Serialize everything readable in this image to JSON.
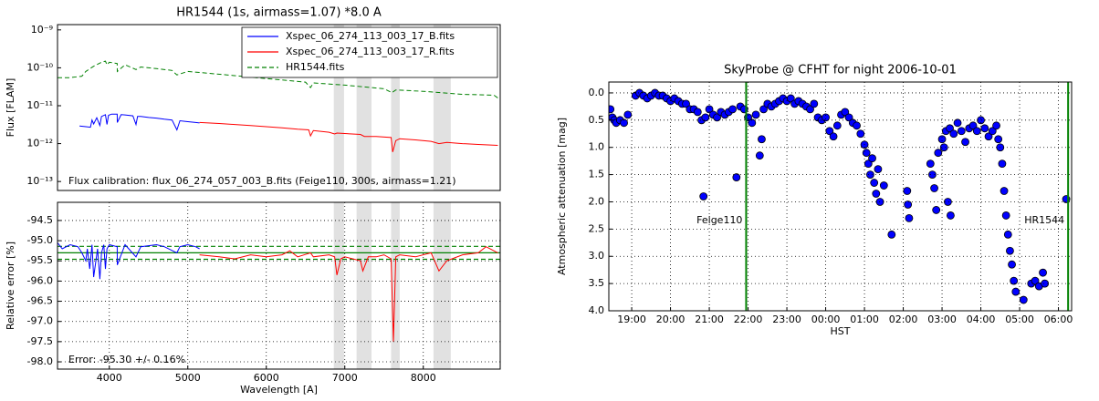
{
  "chart_data": [
    {
      "type": "line",
      "title": "HR1544 (1s, airmass=1.07) *8.0 A",
      "ylabel": "Flux [FLAM]",
      "yscale": "log",
      "xlim": [
        3340,
        8980
      ],
      "ylim": [
        5.8e-14,
        1.38e-09
      ],
      "yticks": [
        {
          "value": 1e-09,
          "label": "10⁻⁹"
        },
        {
          "value": 1e-10,
          "label": "10⁻¹⁰"
        },
        {
          "value": 1e-11,
          "label": "10⁻¹¹"
        },
        {
          "value": 1e-12,
          "label": "10⁻¹²"
        },
        {
          "value": 1e-13,
          "label": "10⁻¹³"
        }
      ],
      "legend": "upper right",
      "bands": [
        [
          6860,
          6990
        ],
        [
          7150,
          7340
        ],
        [
          7590,
          7700
        ],
        [
          8130,
          8350
        ]
      ],
      "annotation": "Flux calibration: flux_06_274_057_003_B.fits (Feige110, 300s, airmass=1.21)",
      "series": [
        {
          "name": "Xspec_06_274_113_003_17_B.fits",
          "color": "#0000ff",
          "linestyle": "solid",
          "x": [
            3620,
            3700,
            3760,
            3780,
            3800,
            3840,
            3880,
            3900,
            3950,
            3970,
            3990,
            4030,
            4100,
            4102,
            4150,
            4200,
            4300,
            4340,
            4360,
            4400,
            4500,
            4600,
            4700,
            4800,
            4861,
            4900,
            5000,
            5100,
            5150
          ],
          "values": [
            2.9e-12,
            2.8e-12,
            2.7e-12,
            4.2e-12,
            3.3e-12,
            4.8e-12,
            3e-12,
            5.2e-12,
            5.8e-12,
            3.2e-12,
            5.6e-12,
            6e-12,
            6e-12,
            3.6e-12,
            5.8e-12,
            5.7e-12,
            5.4e-12,
            3.2e-12,
            5.2e-12,
            5.2e-12,
            4.9e-12,
            4.7e-12,
            4.4e-12,
            4.2e-12,
            2.3e-12,
            4e-12,
            3.8e-12,
            3.6e-12,
            3.5e-12
          ]
        },
        {
          "name": "Xspec_06_274_113_003_17_R.fits",
          "color": "#ff0000",
          "linestyle": "solid",
          "x": [
            5150,
            5400,
            5600,
            5800,
            6000,
            6200,
            6400,
            6540,
            6563,
            6600,
            6800,
            6870,
            6900,
            7000,
            7200,
            7250,
            7400,
            7590,
            7610,
            7650,
            7700,
            7900,
            8100,
            8200,
            8300,
            8500,
            8700,
            8950
          ],
          "values": [
            3.6e-12,
            3.4e-12,
            3.2e-12,
            3e-12,
            2.8e-12,
            2.6e-12,
            2.4e-12,
            2.3e-12,
            1.6e-12,
            2.2e-12,
            2e-12,
            1.8e-12,
            1.9e-12,
            1.85e-12,
            1.75e-12,
            1.55e-12,
            1.55e-12,
            1.45e-12,
            6e-13,
            1.2e-12,
            1.35e-12,
            1.25e-12,
            1.15e-12,
            1e-12,
            1.08e-12,
            1e-12,
            9.5e-13,
            9e-13
          ]
        },
        {
          "name": "HR1544.fits",
          "color": "#008000",
          "linestyle": "dashed",
          "x": [
            3340,
            3500,
            3650,
            3700,
            3800,
            3900,
            3950,
            3970,
            4000,
            4100,
            4102,
            4200,
            4340,
            4400,
            4600,
            4800,
            4861,
            5000,
            5500,
            6000,
            6500,
            6563,
            6600,
            7000,
            7500,
            7600,
            7650,
            8000,
            8500,
            8900,
            8950
          ],
          "values": [
            5.5e-11,
            5.5e-11,
            6e-11,
            8e-11,
            1.1e-10,
            1.4e-10,
            1.5e-10,
            1.2e-10,
            1.4e-10,
            1.3e-10,
            8e-11,
            1.2e-10,
            9e-11,
            1.05e-10,
            9.5e-11,
            8.5e-11,
            6.5e-11,
            8e-11,
            6.5e-11,
            5.2e-11,
            4.2e-11,
            3e-11,
            4e-11,
            3.5e-11,
            2.8e-11,
            2.2e-11,
            2.6e-11,
            2.4e-11,
            2e-11,
            1.9e-11,
            1.6e-11
          ]
        }
      ]
    },
    {
      "type": "line",
      "xlabel": "Wavelength [A]",
      "ylabel": "Relative error [%]",
      "grid": true,
      "xlim": [
        3340,
        8980
      ],
      "ylim": [
        -98.18,
        -94.05
      ],
      "xticks": [
        4000,
        5000,
        6000,
        7000,
        8000
      ],
      "yticks": [
        -94.5,
        {
          "value": -95,
          "label": "-95.0"
        },
        -95.5,
        {
          "value": -96,
          "label": "-96.0"
        },
        -96.5,
        {
          "value": -97,
          "label": "-97.0"
        },
        -97.5,
        {
          "value": -98,
          "label": "-98.0"
        }
      ],
      "bands": [
        [
          6860,
          6990
        ],
        [
          7150,
          7340
        ],
        [
          7590,
          7700
        ],
        [
          8130,
          8350
        ]
      ],
      "annotation": "Error: -95.30 +/- 0.16%",
      "hlines": [
        {
          "value": -95.3,
          "color": "#008000",
          "linestyle": "solid"
        },
        {
          "value": -95.14,
          "color": "#008000",
          "linestyle": "dashed"
        },
        {
          "value": -95.46,
          "color": "#008000",
          "linestyle": "dashed"
        }
      ],
      "series": [
        {
          "color": "#0000ff",
          "linestyle": "solid",
          "x": [
            3340,
            3400,
            3500,
            3600,
            3650,
            3700,
            3720,
            3750,
            3780,
            3800,
            3850,
            3880,
            3900,
            3930,
            3950,
            3970,
            4000,
            4100,
            4102,
            4200,
            4340,
            4400,
            4600,
            4700,
            4861,
            4900,
            5000,
            5100,
            5150
          ],
          "values": [
            -95.05,
            -95.2,
            -95.1,
            -95.15,
            -95.3,
            -95.5,
            -95.2,
            -95.7,
            -95.1,
            -95.9,
            -95.2,
            -95.95,
            -95.3,
            -95.1,
            -95.7,
            -95.2,
            -95.1,
            -95.15,
            -95.6,
            -95.1,
            -95.4,
            -95.15,
            -95.1,
            -95.15,
            -95.3,
            -95.15,
            -95.1,
            -95.15,
            -95.2
          ]
        },
        {
          "color": "#ff0000",
          "linestyle": "solid",
          "x": [
            5150,
            5400,
            5600,
            5800,
            6000,
            6200,
            6300,
            6400,
            6563,
            6600,
            6800,
            6870,
            6900,
            6950,
            7000,
            7200,
            7230,
            7300,
            7400,
            7500,
            7590,
            7620,
            7650,
            7700,
            7900,
            8100,
            8200,
            8300,
            8500,
            8700,
            8800,
            8950
          ],
          "values": [
            -95.35,
            -95.4,
            -95.45,
            -95.35,
            -95.4,
            -95.35,
            -95.25,
            -95.4,
            -95.3,
            -95.4,
            -95.35,
            -95.4,
            -95.85,
            -95.45,
            -95.4,
            -95.5,
            -95.75,
            -95.4,
            -95.4,
            -95.35,
            -95.45,
            -97.5,
            -95.4,
            -95.35,
            -95.4,
            -95.3,
            -95.75,
            -95.5,
            -95.35,
            -95.3,
            -95.15,
            -95.3
          ]
        }
      ]
    },
    {
      "type": "scatter",
      "title": "SkyProbe @ CFHT for night 2006-10-01",
      "xlabel": "HST",
      "ylabel": "Atmospheric attenuation [mag]",
      "grid": true,
      "xlim": [
        18.41,
        30.34
      ],
      "ylim": [
        4.0,
        -0.2
      ],
      "xticks": [
        {
          "value": 19,
          "label": "19:00"
        },
        {
          "value": 20,
          "label": "20:00"
        },
        {
          "value": 21,
          "label": "21:00"
        },
        {
          "value": 22,
          "label": "22:00"
        },
        {
          "value": 23,
          "label": "23:00"
        },
        {
          "value": 24,
          "label": "00:00"
        },
        {
          "value": 25,
          "label": "01:00"
        },
        {
          "value": 26,
          "label": "02:00"
        },
        {
          "value": 27,
          "label": "03:00"
        },
        {
          "value": 28,
          "label": "04:00"
        },
        {
          "value": 29,
          "label": "05:00"
        },
        {
          "value": 30,
          "label": "06:00"
        }
      ],
      "yticks": [
        {
          "value": 0,
          "label": "0.0"
        },
        0.5,
        {
          "value": 1,
          "label": "1.0"
        },
        1.5,
        {
          "value": 2,
          "label": "2.0"
        },
        2.5,
        {
          "value": 3,
          "label": "3.0"
        },
        3.5,
        {
          "value": 4,
          "label": "4.0"
        }
      ],
      "vlines": [
        {
          "x": 21.95,
          "label": "Feige110",
          "color": "#008000"
        },
        {
          "x": 30.25,
          "label": "HR1544",
          "color": "#008000"
        }
      ],
      "color": "#0000ff",
      "x": [
        18.45,
        18.5,
        18.55,
        18.6,
        18.7,
        18.8,
        18.9,
        19.1,
        19.2,
        19.3,
        19.4,
        19.5,
        19.6,
        19.7,
        19.8,
        19.9,
        20.0,
        20.1,
        20.2,
        20.3,
        20.4,
        20.5,
        20.6,
        20.7,
        20.8,
        20.85,
        20.9,
        21.0,
        21.1,
        21.2,
        21.3,
        21.4,
        21.5,
        21.6,
        21.7,
        21.8,
        21.9,
        22.0,
        22.1,
        22.2,
        22.3,
        22.35,
        22.4,
        22.5,
        22.6,
        22.7,
        22.8,
        22.9,
        23.0,
        23.1,
        23.2,
        23.3,
        23.4,
        23.5,
        23.6,
        23.7,
        23.8,
        23.9,
        24.0,
        24.1,
        24.2,
        24.3,
        24.4,
        24.5,
        24.6,
        24.7,
        24.8,
        24.9,
        25.0,
        25.05,
        25.1,
        25.15,
        25.2,
        25.25,
        25.3,
        25.35,
        25.4,
        25.5,
        25.7,
        26.1,
        26.12,
        26.15,
        26.7,
        26.75,
        26.8,
        26.85,
        26.9,
        27.0,
        27.05,
        27.1,
        27.15,
        27.2,
        27.22,
        27.3,
        27.4,
        27.5,
        27.6,
        27.7,
        27.8,
        27.9,
        28.0,
        28.1,
        28.2,
        28.3,
        28.4,
        28.45,
        28.5,
        28.55,
        28.6,
        28.65,
        28.7,
        28.75,
        28.8,
        28.85,
        28.9,
        29.1,
        29.3,
        29.4,
        29.5,
        29.6,
        29.65,
        30.2
      ],
      "values": [
        0.3,
        0.45,
        0.5,
        0.55,
        0.5,
        0.55,
        0.4,
        0.05,
        0.0,
        0.05,
        0.1,
        0.05,
        0.0,
        0.05,
        0.05,
        0.1,
        0.15,
        0.1,
        0.15,
        0.2,
        0.2,
        0.3,
        0.3,
        0.35,
        0.5,
        1.9,
        0.45,
        0.3,
        0.4,
        0.45,
        0.35,
        0.4,
        0.35,
        0.3,
        1.55,
        0.25,
        0.3,
        0.45,
        0.55,
        0.4,
        1.15,
        0.85,
        0.3,
        0.2,
        0.25,
        0.2,
        0.15,
        0.1,
        0.15,
        0.1,
        0.2,
        0.15,
        0.2,
        0.25,
        0.3,
        0.2,
        0.45,
        0.5,
        0.45,
        0.7,
        0.8,
        0.6,
        0.4,
        0.35,
        0.45,
        0.55,
        0.6,
        0.75,
        0.95,
        1.1,
        1.3,
        1.5,
        1.2,
        1.65,
        1.85,
        1.4,
        2.0,
        1.7,
        2.6,
        1.8,
        2.05,
        2.3,
        1.3,
        1.5,
        1.75,
        2.15,
        1.1,
        0.85,
        1.0,
        0.7,
        2.0,
        0.65,
        2.25,
        0.75,
        0.55,
        0.7,
        0.9,
        0.65,
        0.6,
        0.7,
        0.5,
        0.65,
        0.8,
        0.7,
        0.6,
        0.85,
        1.0,
        1.3,
        1.8,
        2.25,
        2.6,
        2.9,
        3.15,
        3.45,
        3.65,
        3.8,
        3.5,
        3.45,
        3.55,
        3.3,
        3.5,
        1.95
      ]
    }
  ]
}
